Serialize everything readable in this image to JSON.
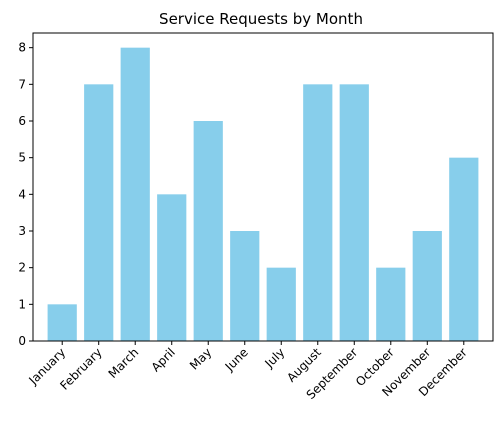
{
  "chart_data": {
    "type": "bar",
    "title": "Service Requests by Month",
    "xlabel": "",
    "ylabel": "",
    "categories": [
      "January",
      "February",
      "March",
      "April",
      "May",
      "June",
      "July",
      "August",
      "September",
      "October",
      "November",
      "December"
    ],
    "values": [
      1,
      7,
      8,
      4,
      6,
      3,
      2,
      7,
      7,
      2,
      3,
      5
    ],
    "ylim": [
      0,
      8.4
    ],
    "yticks": [
      0,
      1,
      2,
      3,
      4,
      5,
      6,
      7,
      8
    ],
    "bar_color": "#87CEEB",
    "grid": false,
    "legend": false
  }
}
